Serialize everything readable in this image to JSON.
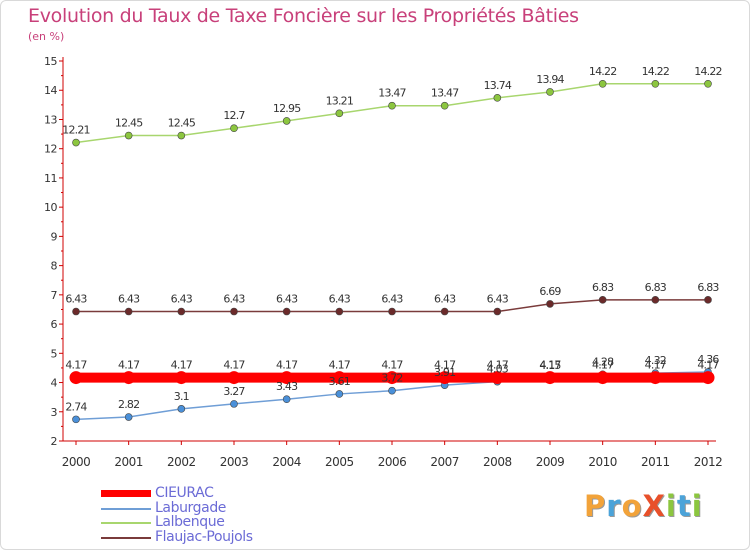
{
  "title": "Evolution du Taux de Taxe Foncière sur les Propriétés Bâties",
  "unit_label": "(en %)",
  "logo": {
    "text": "ProXiti",
    "letters": [
      {
        "ch": "P",
        "color": "#f2a33a"
      },
      {
        "ch": "r",
        "color": "#4ba3d9"
      },
      {
        "ch": "o",
        "color": "#f2a33a"
      },
      {
        "ch": "X",
        "color": "#e8502a"
      },
      {
        "ch": "i",
        "color": "#8cc63f"
      },
      {
        "ch": "t",
        "color": "#4ba3d9"
      },
      {
        "ch": "i",
        "color": "#8cc63f"
      }
    ]
  },
  "chart_data": {
    "type": "line",
    "title": "Evolution du Taux de Taxe Foncière sur les Propriétés Bâties",
    "ylabel": "(en %)",
    "xlabel": "",
    "ylim": [
      2,
      15
    ],
    "y_ticks": [
      2,
      3,
      4,
      5,
      6,
      7,
      8,
      9,
      10,
      11,
      12,
      13,
      14,
      15
    ],
    "grid": false,
    "legend_position": "bottom-left",
    "categories": [
      "2000",
      "2001",
      "2002",
      "2003",
      "2004",
      "2005",
      "2006",
      "2007",
      "2008",
      "2009",
      "2010",
      "2011",
      "2012"
    ],
    "series": [
      {
        "name": "CIEURAC",
        "color": "#ff0000",
        "style": "thick",
        "values": [
          4.17,
          4.17,
          4.17,
          4.17,
          4.17,
          4.17,
          4.17,
          4.17,
          4.17,
          4.17,
          4.17,
          4.17,
          4.17
        ],
        "labels": [
          "4.17",
          "4.17",
          "4.17",
          "4.17",
          "4.17",
          "4.17",
          "4.17",
          "4.17",
          "4.17",
          "4.17",
          "4.17",
          "4.17",
          "4.17"
        ]
      },
      {
        "name": "Laburgade",
        "color": "#6f9ed6",
        "marker_color": "#4a90d9",
        "values": [
          2.74,
          2.82,
          3.1,
          3.27,
          3.43,
          3.61,
          3.72,
          3.91,
          4.03,
          4.15,
          4.28,
          4.32,
          4.36
        ],
        "labels": [
          "2.74",
          "2.82",
          "3.1",
          "3.27",
          "3.43",
          "3.61",
          "3.72",
          "3.91",
          "4.03",
          "4.15",
          "4.28",
          "4.32",
          "4.36"
        ]
      },
      {
        "name": "Lalbenque",
        "color": "#a8d66e",
        "marker_color": "#8cc63f",
        "values": [
          12.21,
          12.45,
          12.45,
          12.7,
          12.95,
          13.21,
          13.47,
          13.47,
          13.74,
          13.94,
          14.22,
          14.22,
          14.22
        ],
        "labels": [
          "12.21",
          "12.45",
          "12.45",
          "12.7",
          "12.95",
          "13.21",
          "13.47",
          "13.47",
          "13.74",
          "13.94",
          "14.22",
          "14.22",
          "14.22"
        ]
      },
      {
        "name": "Flaujac-Poujols",
        "color": "#7a3b3b",
        "marker_color": "#6b2a2a",
        "values": [
          6.43,
          6.43,
          6.43,
          6.43,
          6.43,
          6.43,
          6.43,
          6.43,
          6.43,
          6.69,
          6.83,
          6.83,
          6.83
        ],
        "labels": [
          "6.43",
          "6.43",
          "6.43",
          "6.43",
          "6.43",
          "6.43",
          "6.43",
          "6.43",
          "6.43",
          "6.69",
          "6.83",
          "6.83",
          "6.83"
        ]
      }
    ]
  }
}
